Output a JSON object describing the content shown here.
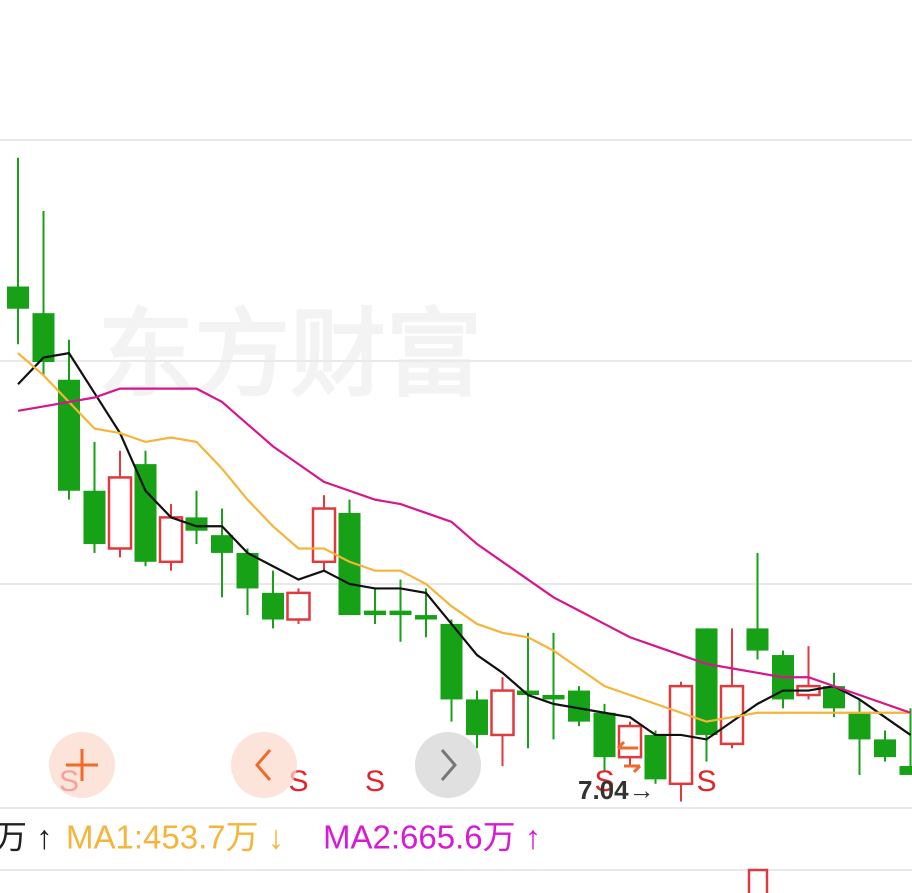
{
  "chart_data": {
    "type": "candlestick",
    "categories": [
      null,
      null,
      null,
      null,
      null,
      null,
      null,
      null,
      null,
      null,
      null,
      null,
      null,
      null,
      null,
      null,
      null,
      null,
      null,
      null,
      null,
      null,
      null,
      null,
      null,
      null,
      null,
      null,
      null,
      null,
      null,
      null,
      null,
      null,
      null,
      null
    ],
    "open": [
      8.2,
      8.14,
      7.99,
      7.74,
      7.61,
      7.8,
      7.58,
      7.68,
      7.64,
      7.6,
      7.51,
      7.45,
      7.58,
      7.69,
      7.47,
      7.47,
      7.46,
      7.44,
      7.27,
      7.19,
      7.29,
      7.28,
      7.29,
      7.24,
      7.14,
      7.19,
      7.08,
      7.43,
      7.17,
      7.43,
      7.37,
      7.28,
      7.3,
      7.24,
      7.18,
      7.12
    ],
    "high": [
      8.49,
      8.37,
      8.08,
      7.85,
      7.83,
      7.83,
      7.71,
      7.74,
      7.7,
      7.61,
      7.56,
      7.52,
      7.73,
      7.72,
      7.52,
      7.54,
      7.52,
      7.45,
      7.29,
      7.32,
      7.42,
      7.42,
      7.3,
      7.26,
      7.22,
      7.2,
      7.31,
      7.43,
      7.43,
      7.6,
      7.38,
      7.39,
      7.33,
      7.27,
      7.2,
      7.25
    ],
    "low": [
      8.07,
      8.0,
      7.72,
      7.6,
      7.59,
      7.57,
      7.56,
      7.62,
      7.5,
      7.46,
      7.43,
      7.44,
      7.56,
      7.46,
      7.44,
      7.4,
      7.41,
      7.22,
      7.16,
      7.12,
      7.16,
      7.18,
      7.21,
      7.11,
      7.12,
      7.08,
      7.04,
      7.13,
      7.16,
      7.36,
      7.25,
      7.27,
      7.23,
      7.1,
      7.13,
      7.1
    ],
    "close": [
      8.15,
      8.03,
      7.74,
      7.62,
      7.77,
      7.58,
      7.68,
      7.65,
      7.6,
      7.52,
      7.45,
      7.51,
      7.7,
      7.46,
      7.46,
      7.46,
      7.45,
      7.27,
      7.19,
      7.29,
      7.28,
      7.27,
      7.22,
      7.14,
      7.21,
      7.09,
      7.3,
      7.19,
      7.3,
      7.38,
      7.27,
      7.3,
      7.25,
      7.18,
      7.14,
      7.1
    ],
    "up_color": "#e0393e",
    "down_color": "#16a116",
    "lines": [
      {
        "color": "#111111",
        "values": [
          7.98,
          8.04,
          8.05,
          7.96,
          7.87,
          7.74,
          7.68,
          7.66,
          7.66,
          7.6,
          7.57,
          7.54,
          7.56,
          7.53,
          7.52,
          7.52,
          7.51,
          7.44,
          7.37,
          7.33,
          7.28,
          7.26,
          7.25,
          7.24,
          7.23,
          7.19,
          7.19,
          7.18,
          7.22,
          7.26,
          7.29,
          7.29,
          7.3,
          7.27,
          7.23,
          7.19
        ]
      },
      {
        "color": "#f5b43a",
        "values": [
          8.05,
          8.0,
          7.94,
          7.88,
          7.87,
          7.85,
          7.86,
          7.85,
          7.79,
          7.72,
          7.66,
          7.61,
          7.61,
          7.58,
          7.56,
          7.56,
          7.53,
          7.48,
          7.44,
          7.42,
          7.41,
          7.38,
          7.34,
          7.3,
          7.28,
          7.26,
          7.24,
          7.22,
          7.23,
          7.24,
          7.24,
          7.24,
          7.24,
          7.24,
          7.24,
          7.24
        ]
      },
      {
        "color": "#d6168c",
        "values": [
          7.92,
          7.93,
          7.94,
          7.95,
          7.97,
          7.97,
          7.97,
          7.97,
          7.94,
          7.89,
          7.84,
          7.8,
          7.76,
          7.74,
          7.72,
          7.71,
          7.69,
          7.67,
          7.62,
          7.58,
          7.54,
          7.5,
          7.47,
          7.44,
          7.41,
          7.39,
          7.37,
          7.35,
          7.34,
          7.33,
          7.32,
          7.32,
          7.3,
          7.28,
          7.26,
          7.24
        ]
      }
    ],
    "signals": [
      null,
      null,
      "S",
      null,
      null,
      null,
      null,
      null,
      null,
      null,
      null,
      "S",
      null,
      null,
      "S",
      null,
      null,
      null,
      null,
      null,
      null,
      null,
      null,
      "S",
      null,
      null,
      null,
      "S",
      null,
      null,
      null,
      null,
      null,
      null,
      null,
      null
    ],
    "ylim": [
      7.03,
      8.53
    ],
    "annotations": [
      {
        "text": "7.04→"
      }
    ],
    "watermark": "东方财富",
    "legend": [
      {
        "text": "万 ↑",
        "color": "#222222"
      },
      {
        "text": "MA1:453.7万 ↓",
        "color": "#f5b43a"
      },
      {
        "text": "MA2:665.6万 ↑",
        "color": "#d61ad6"
      }
    ]
  }
}
